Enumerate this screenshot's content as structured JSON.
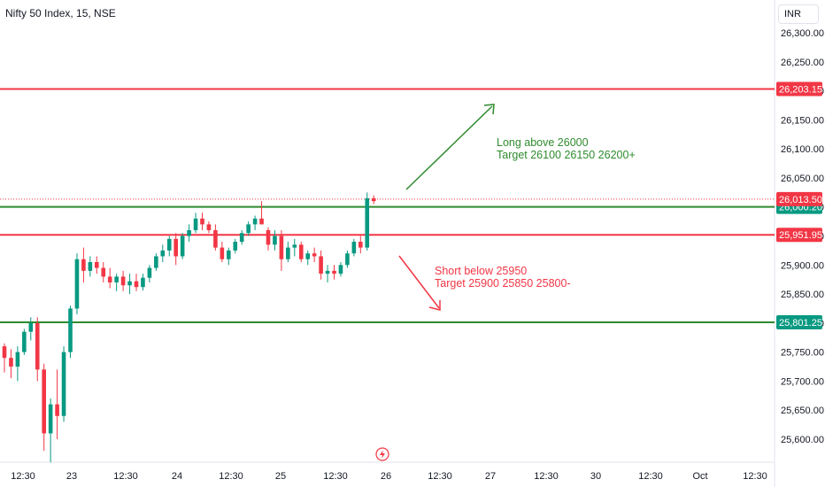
{
  "header": {
    "title": "Nifty 50 Index, 15, NSE",
    "currency": "INR"
  },
  "chart_data": {
    "type": "candlestick",
    "ylim": [
      25560,
      26345
    ],
    "y_ticks": [
      "26,300.00",
      "26,250.00",
      "26,200.00",
      "26,150.00",
      "26,100.00",
      "26,050.00",
      "26,000.00",
      "25,950.00",
      "25,900.00",
      "25,850.00",
      "25,800.00",
      "25,750.00",
      "25,700.00",
      "25,650.00",
      "25,600.00"
    ],
    "x_ticks": [
      "12:30",
      "23",
      "12:30",
      "24",
      "12:30",
      "25",
      "12:30",
      "26",
      "12:30",
      "27",
      "12:30",
      "30",
      "12:30",
      "Oct",
      "12:30"
    ],
    "candles": [
      [
        25760,
        25765,
        25715,
        25740
      ],
      [
        25740,
        25755,
        25705,
        25725
      ],
      [
        25725,
        25760,
        25700,
        25750
      ],
      [
        25750,
        25790,
        25745,
        25785
      ],
      [
        25785,
        25810,
        25770,
        25800
      ],
      [
        25800,
        25810,
        25700,
        25720
      ],
      [
        25720,
        25730,
        25580,
        25610
      ],
      [
        25610,
        25670,
        25560,
        25660
      ],
      [
        25660,
        25720,
        25600,
        25640
      ],
      [
        25640,
        25760,
        25630,
        25750
      ],
      [
        25750,
        25830,
        25740,
        25825
      ],
      [
        25825,
        25920,
        25815,
        25910
      ],
      [
        25910,
        25930,
        25870,
        25890
      ],
      [
        25890,
        25915,
        25880,
        25905
      ],
      [
        25905,
        25915,
        25885,
        25895
      ],
      [
        25895,
        25905,
        25870,
        25880
      ],
      [
        25880,
        25895,
        25860,
        25870
      ],
      [
        25870,
        25885,
        25855,
        25880
      ],
      [
        25880,
        25890,
        25855,
        25865
      ],
      [
        25865,
        25885,
        25850,
        25872
      ],
      [
        25872,
        25885,
        25855,
        25862
      ],
      [
        25862,
        25885,
        25856,
        25878
      ],
      [
        25878,
        25900,
        25870,
        25895
      ],
      [
        25895,
        25920,
        25890,
        25915
      ],
      [
        25915,
        25935,
        25905,
        25925
      ],
      [
        25925,
        25950,
        25915,
        25945
      ],
      [
        25945,
        25955,
        25900,
        25915
      ],
      [
        25915,
        25955,
        25910,
        25950
      ],
      [
        25950,
        25970,
        25940,
        25960
      ],
      [
        25960,
        25990,
        25955,
        25980
      ],
      [
        25980,
        25990,
        25960,
        25970
      ],
      [
        25970,
        25975,
        25955,
        25960
      ],
      [
        25960,
        25970,
        25925,
        25930
      ],
      [
        25930,
        25940,
        25905,
        25910
      ],
      [
        25910,
        25930,
        25900,
        25925
      ],
      [
        25925,
        25945,
        25920,
        25940
      ],
      [
        25940,
        25960,
        25935,
        25955
      ],
      [
        25955,
        25975,
        25950,
        25970
      ],
      [
        25970,
        25985,
        25960,
        25980
      ],
      [
        25980,
        26010,
        25970,
        25970
      ],
      [
        25960,
        25965,
        25925,
        25935
      ],
      [
        25935,
        25960,
        25925,
        25950
      ],
      [
        25950,
        25960,
        25890,
        25910
      ],
      [
        25910,
        25940,
        25905,
        25930
      ],
      [
        25930,
        25945,
        25915,
        25935
      ],
      [
        25935,
        25940,
        25905,
        25910
      ],
      [
        25910,
        25925,
        25900,
        25920
      ],
      [
        25920,
        25930,
        25905,
        25915
      ],
      [
        25915,
        25925,
        25875,
        25885
      ],
      [
        25885,
        25900,
        25870,
        25890
      ],
      [
        25890,
        25900,
        25875,
        25885
      ],
      [
        25885,
        25905,
        25880,
        25900
      ],
      [
        25900,
        25925,
        25895,
        25920
      ],
      [
        25920,
        25945,
        25915,
        25940
      ],
      [
        25940,
        25950,
        25920,
        25930
      ],
      [
        25930,
        26025,
        25925,
        26015
      ],
      [
        26015,
        26020,
        26005,
        26010
      ]
    ],
    "levels": [
      {
        "value": 26203.15,
        "label": "26,203.15",
        "color": "#f23645"
      },
      {
        "value": 26000.2,
        "label": "26,000.20",
        "color": "#089981"
      },
      {
        "value": 25951.95,
        "label": "25,951.95",
        "color": "#f23645"
      },
      {
        "value": 25801.25,
        "label": "25,801.25",
        "color": "#089981"
      }
    ],
    "last_price": {
      "value": 26013.5,
      "label": "26,013.50",
      "color": "#f23645"
    },
    "annotations": [
      {
        "lines": [
          "Long above 26000",
          "Target 26100 26150 26200+"
        ],
        "color": "#2e8b2e"
      },
      {
        "lines": [
          "Short below 25950",
          "Target 25900 25850 25800-"
        ],
        "color": "#f23645"
      }
    ],
    "colors": {
      "up": "#089981",
      "down": "#f23645",
      "long_level": "#2e8b2e",
      "short_level": "#f23645"
    }
  }
}
